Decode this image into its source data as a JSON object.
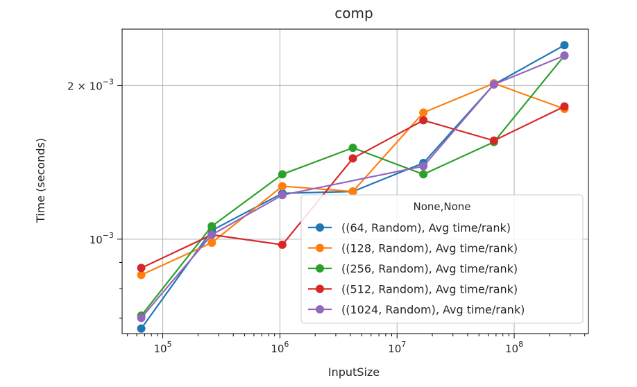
{
  "chart_data": {
    "type": "line",
    "title": "comp",
    "xlabel": "InputSize",
    "ylabel": "Time (seconds)",
    "xscale": "log",
    "yscale": "log",
    "xlim": [
      45000,
      430000000
    ],
    "ylim": [
      0.000653,
      0.00258
    ],
    "grid": true,
    "x_ticks": [
      {
        "value": 100000,
        "base": "10",
        "exp": "5"
      },
      {
        "value": 1000000,
        "base": "10",
        "exp": "6"
      },
      {
        "value": 10000000,
        "base": "10",
        "exp": "7"
      },
      {
        "value": 100000000,
        "base": "10",
        "exp": "8"
      }
    ],
    "y_ticks": [
      {
        "value": 0.002,
        "base": "2 × 10",
        "exp": "−3"
      },
      {
        "value": 0.001,
        "base": "10",
        "exp": "−3"
      }
    ],
    "legend": {
      "title": "None,None",
      "placement": "lower right"
    },
    "x": [
      65536,
      262144,
      1048576,
      4194304,
      16777216,
      67108864,
      268435456
    ],
    "series": [
      {
        "name": "((64, Random), Avg time/rank)",
        "color": "#1f77b4",
        "values": [
          0.000668,
          0.00104,
          0.00123,
          0.00124,
          0.00141,
          0.00201,
          0.0024
        ]
      },
      {
        "name": "((128, Random), Avg time/rank)",
        "color": "#ff7f0e",
        "values": [
          0.000851,
          0.000984,
          0.00127,
          0.00124,
          0.00177,
          0.00202,
          0.0018
        ]
      },
      {
        "name": "((256, Random), Avg time/rank)",
        "color": "#2ca02c",
        "values": [
          0.000708,
          0.00106,
          0.00134,
          0.00151,
          0.00134,
          0.00155,
          0.00229
        ]
      },
      {
        "name": "((512, Random), Avg time/rank)",
        "color": "#d62728",
        "values": [
          0.000878,
          0.00102,
          0.000975,
          0.00144,
          0.00171,
          0.00156,
          0.00182
        ]
      },
      {
        "name": "((1024, Random), Avg time/rank)",
        "color": "#9467bd",
        "values": [
          0.000701,
          0.00102,
          0.00122,
          null,
          0.00139,
          0.00201,
          0.00229
        ]
      }
    ]
  }
}
